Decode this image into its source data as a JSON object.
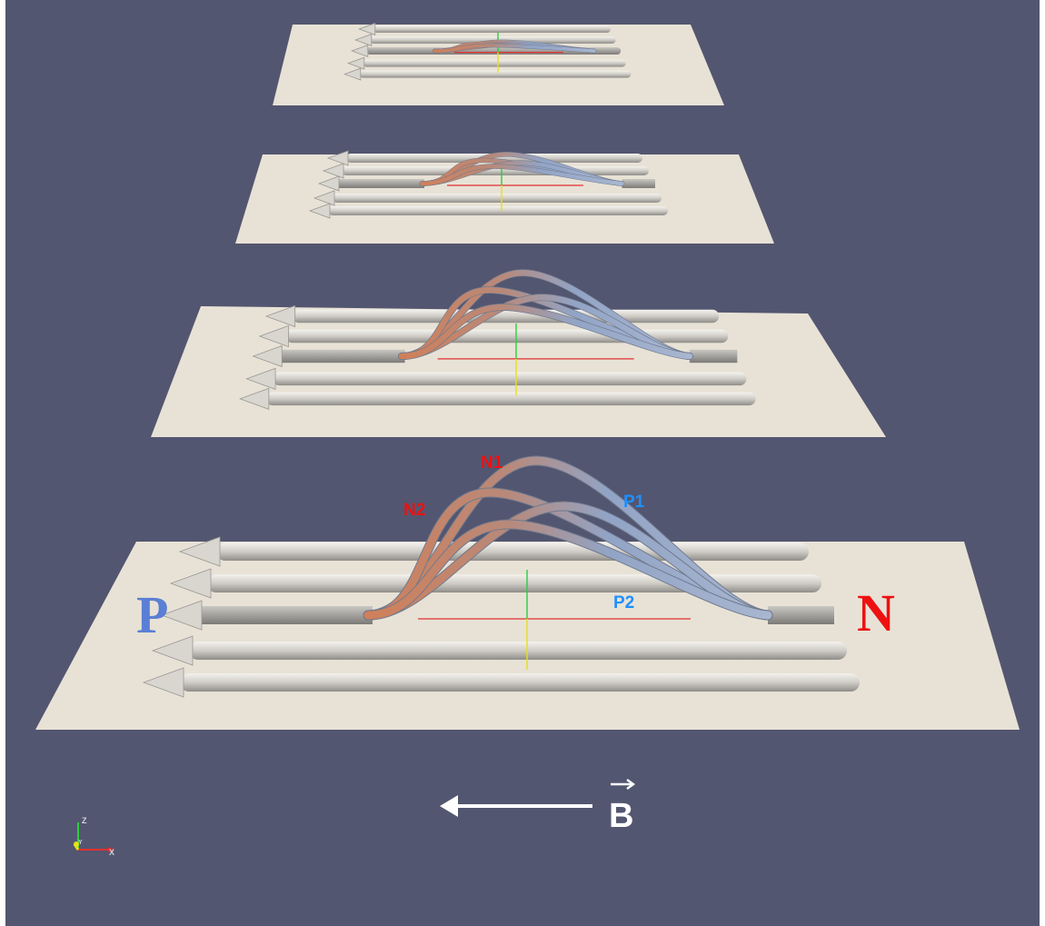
{
  "labels": {
    "p_polarity": "P",
    "n_polarity": "N",
    "n1": "N1",
    "n2": "N2",
    "p1": "P1",
    "p2": "P2",
    "b_field": "B"
  },
  "axes_widget": {
    "z": "Z",
    "y": "Y",
    "x": "X"
  },
  "colors": {
    "background": "#535670",
    "plane": "#e8e2d6",
    "tube": "#cbc8c2",
    "tube_dark": "#9e9d99",
    "flux_orange": "#c8805c",
    "flux_blue": "#8ea2c8",
    "neg_label": "#ee1111",
    "pos_label": "#1e90ff",
    "P_letter": "#5b7fd4",
    "N_letter": "#ee1111",
    "arrow": "#ffffff",
    "red_line": "#e03030",
    "green_line": "#2ecc40",
    "yellow_line": "#e6e01a"
  }
}
